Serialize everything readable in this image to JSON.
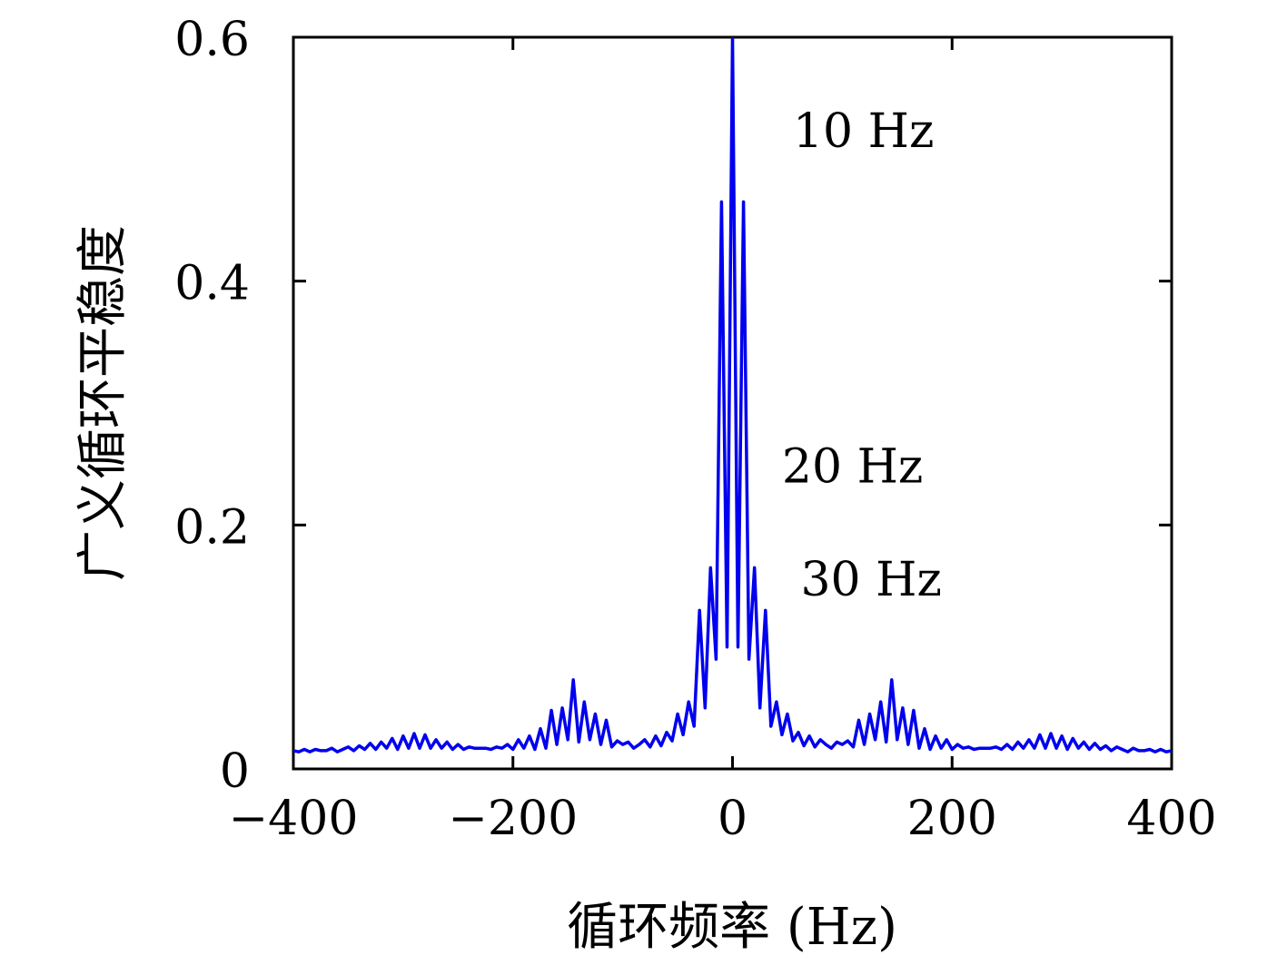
{
  "chart_data": {
    "type": "line",
    "xlabel": "循环频率 (Hz)",
    "ylabel": "广义循环平稳度",
    "xlim": [
      -400,
      400
    ],
    "ylim": [
      0,
      0.6
    ],
    "x_ticks": [
      -400,
      -200,
      0,
      200,
      400
    ],
    "x_tick_labels": [
      "−400",
      "−200",
      "0",
      "200",
      "400"
    ],
    "y_ticks": [
      0,
      0.2,
      0.4,
      0.6
    ],
    "y_tick_labels": [
      "0",
      "0.2",
      "0.4",
      "0.6"
    ],
    "grid": false,
    "line_color": "#0000ee",
    "annotations": [
      {
        "text": "10 Hz",
        "x": 55,
        "y": 0.51
      },
      {
        "text": "20 Hz",
        "x": 45,
        "y": 0.235
      },
      {
        "text": "30 Hz",
        "x": 62,
        "y": 0.142
      }
    ],
    "series": [
      {
        "x": [
          -400,
          -395,
          -390,
          -385,
          -380,
          -375,
          -370,
          -365,
          -360,
          -355,
          -350,
          -345,
          -340,
          -335,
          -330,
          -325,
          -320,
          -315,
          -310,
          -305,
          -300,
          -295,
          -290,
          -285,
          -280,
          -275,
          -270,
          -265,
          -260,
          -255,
          -250,
          -245,
          -240,
          -235,
          -230,
          -225,
          -220,
          -215,
          -210,
          -205,
          -200,
          -195,
          -190,
          -185,
          -180,
          -175,
          -170,
          -165,
          -160,
          -155,
          -150,
          -145,
          -140,
          -135,
          -130,
          -125,
          -120,
          -115,
          -110,
          -105,
          -100,
          -95,
          -90,
          -85,
          -80,
          -75,
          -70,
          -65,
          -60,
          -55,
          -50,
          -45,
          -40,
          -35,
          -30,
          -25,
          -20,
          -15,
          -10,
          -5,
          0,
          5,
          10,
          15,
          20,
          25,
          30,
          35,
          40,
          45,
          50,
          55,
          60,
          65,
          70,
          75,
          80,
          85,
          90,
          95,
          100,
          105,
          110,
          115,
          120,
          125,
          130,
          135,
          140,
          145,
          150,
          155,
          160,
          165,
          170,
          175,
          180,
          185,
          190,
          195,
          200,
          205,
          210,
          215,
          220,
          225,
          230,
          235,
          240,
          245,
          250,
          255,
          260,
          265,
          270,
          275,
          280,
          285,
          290,
          295,
          300,
          305,
          310,
          315,
          320,
          325,
          330,
          335,
          340,
          345,
          350,
          355,
          360,
          365,
          370,
          375,
          380,
          385,
          390,
          395,
          400
        ],
        "values": [
          0.015,
          0.014,
          0.016,
          0.014,
          0.016,
          0.015,
          0.015,
          0.017,
          0.014,
          0.016,
          0.018,
          0.015,
          0.019,
          0.016,
          0.021,
          0.016,
          0.022,
          0.017,
          0.025,
          0.016,
          0.027,
          0.017,
          0.029,
          0.017,
          0.028,
          0.017,
          0.024,
          0.017,
          0.022,
          0.016,
          0.02,
          0.016,
          0.018,
          0.017,
          0.017,
          0.017,
          0.016,
          0.018,
          0.017,
          0.02,
          0.016,
          0.024,
          0.017,
          0.027,
          0.016,
          0.033,
          0.017,
          0.048,
          0.02,
          0.05,
          0.024,
          0.073,
          0.022,
          0.055,
          0.024,
          0.045,
          0.02,
          0.04,
          0.018,
          0.023,
          0.02,
          0.022,
          0.017,
          0.02,
          0.024,
          0.018,
          0.027,
          0.019,
          0.03,
          0.023,
          0.045,
          0.028,
          0.055,
          0.035,
          0.13,
          0.05,
          0.165,
          0.09,
          0.465,
          0.1,
          0.6,
          0.1,
          0.465,
          0.09,
          0.165,
          0.05,
          0.13,
          0.035,
          0.055,
          0.028,
          0.045,
          0.023,
          0.03,
          0.019,
          0.027,
          0.018,
          0.024,
          0.02,
          0.017,
          0.022,
          0.02,
          0.023,
          0.018,
          0.04,
          0.02,
          0.045,
          0.024,
          0.055,
          0.022,
          0.073,
          0.024,
          0.05,
          0.02,
          0.048,
          0.017,
          0.033,
          0.016,
          0.027,
          0.017,
          0.024,
          0.016,
          0.02,
          0.017,
          0.018,
          0.016,
          0.017,
          0.017,
          0.017,
          0.018,
          0.016,
          0.02,
          0.016,
          0.022,
          0.017,
          0.024,
          0.017,
          0.028,
          0.017,
          0.029,
          0.017,
          0.027,
          0.016,
          0.025,
          0.017,
          0.022,
          0.016,
          0.021,
          0.016,
          0.019,
          0.015,
          0.018,
          0.016,
          0.014,
          0.017,
          0.015,
          0.015,
          0.016,
          0.014,
          0.016,
          0.014,
          0.015
        ]
      }
    ]
  }
}
